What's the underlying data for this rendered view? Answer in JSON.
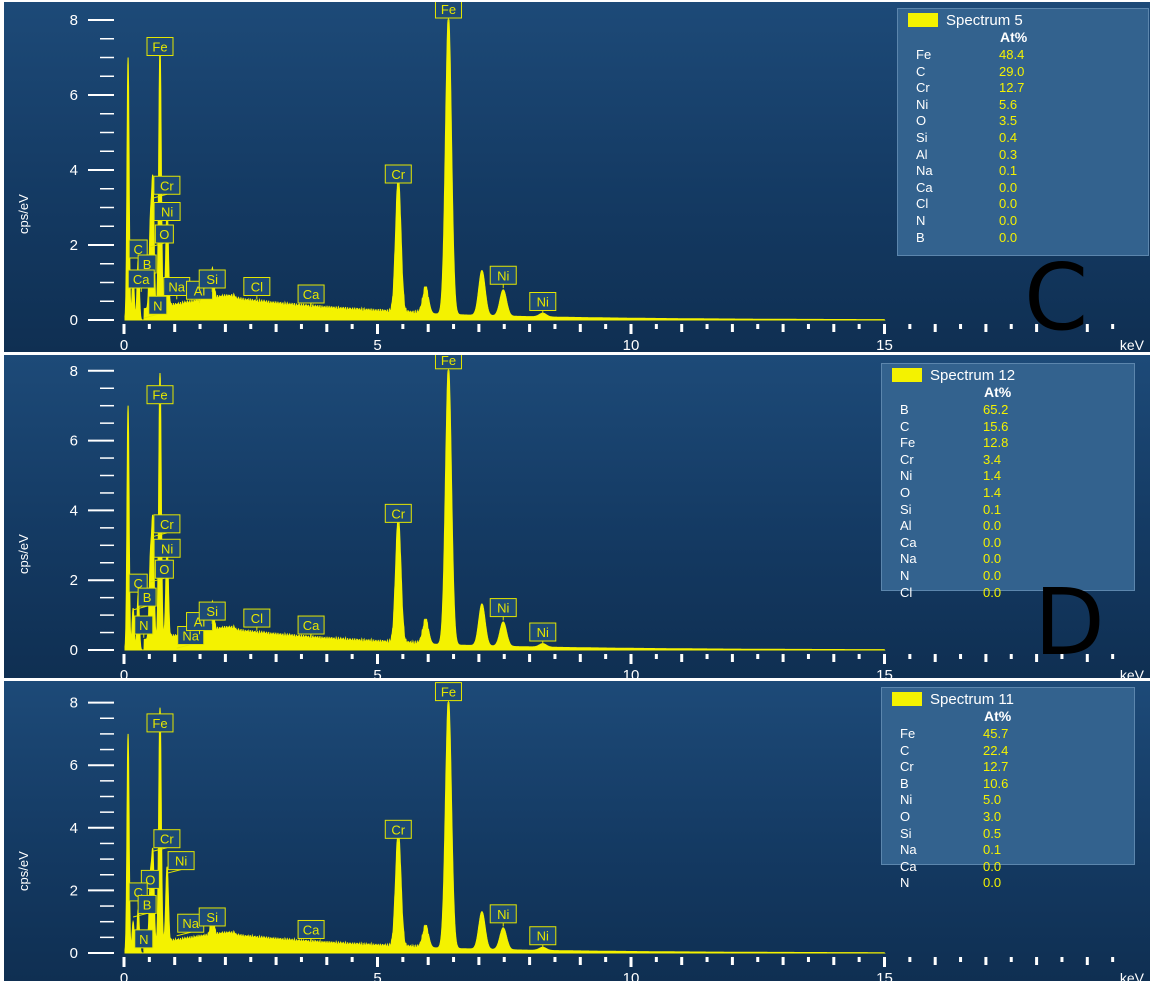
{
  "chart_data": [
    {
      "type": "line",
      "panel_letter": "C",
      "ylabel": "cps/eV",
      "xunit": "keV",
      "xlim": [
        0,
        20
      ],
      "ylim": [
        0,
        8
      ],
      "xticks": [
        0,
        5,
        10,
        15
      ],
      "yticks": [
        0,
        2,
        4,
        6,
        8
      ],
      "legend": {
        "name": "Spectrum 5",
        "column": "At%",
        "rows": [
          {
            "element": "Fe",
            "value": "48.4"
          },
          {
            "element": "C",
            "value": "29.0"
          },
          {
            "element": "Cr",
            "value": "12.7"
          },
          {
            "element": "Ni",
            "value": "5.6"
          },
          {
            "element": "O",
            "value": "3.5"
          },
          {
            "element": "Si",
            "value": "0.4"
          },
          {
            "element": "Al",
            "value": "0.3"
          },
          {
            "element": "Na",
            "value": "0.1"
          },
          {
            "element": "Ca",
            "value": "0.0"
          },
          {
            "element": "Cl",
            "value": "0.0"
          },
          {
            "element": "N",
            "value": "0.0"
          },
          {
            "element": "B",
            "value": "0.0"
          }
        ]
      },
      "peaks": [
        {
          "label": "Fe",
          "x": 0.71,
          "y": 7.0
        },
        {
          "label": "Cr",
          "x": 0.57,
          "y": 3.3
        },
        {
          "label": "Ni",
          "x": 0.85,
          "y": 2.6
        },
        {
          "label": "O",
          "x": 0.52,
          "y": 2.0
        },
        {
          "label": "C",
          "x": 0.28,
          "y": 1.6
        },
        {
          "label": "B",
          "x": 0.18,
          "y": 1.2
        },
        {
          "label": "Ca",
          "x": 0.34,
          "y": 0.8
        },
        {
          "label": "N",
          "x": 0.39,
          "y": 0.1
        },
        {
          "label": "Na",
          "x": 1.04,
          "y": 0.6
        },
        {
          "label": "Al",
          "x": 1.49,
          "y": 0.5
        },
        {
          "label": "Si",
          "x": 1.74,
          "y": 0.8
        },
        {
          "label": "Cl",
          "x": 2.62,
          "y": 0.6
        },
        {
          "label": "Ca",
          "x": 3.69,
          "y": 0.4
        },
        {
          "label": "Cr",
          "x": 5.41,
          "y": 3.6
        },
        {
          "label": "Fe",
          "x": 6.4,
          "y": 8.0
        },
        {
          "label": "Ni",
          "x": 7.48,
          "y": 0.9
        },
        {
          "label": "Ni",
          "x": 8.26,
          "y": 0.2
        }
      ],
      "spectrum_peaks": [
        {
          "x": 0.08,
          "y": 7.0
        },
        {
          "x": 0.18,
          "y": 1.2
        },
        {
          "x": 0.28,
          "y": 1.6
        },
        {
          "x": 0.52,
          "y": 2.2
        },
        {
          "x": 0.57,
          "y": 3.3
        },
        {
          "x": 0.71,
          "y": 7.0
        },
        {
          "x": 0.85,
          "y": 2.6
        },
        {
          "x": 1.74,
          "y": 0.8
        },
        {
          "x": 5.41,
          "y": 3.6
        },
        {
          "x": 5.95,
          "y": 0.7
        },
        {
          "x": 6.4,
          "y": 8.0
        },
        {
          "x": 7.06,
          "y": 1.2
        },
        {
          "x": 7.48,
          "y": 0.7
        },
        {
          "x": 8.26,
          "y": 0.1
        }
      ]
    },
    {
      "type": "line",
      "panel_letter": "D",
      "ylabel": "cps/eV",
      "xunit": "keV",
      "xlim": [
        0,
        20
      ],
      "ylim": [
        0,
        8
      ],
      "xticks": [
        0,
        5,
        10,
        15
      ],
      "yticks": [
        0,
        2,
        4,
        6,
        8
      ],
      "legend": {
        "name": "Spectrum 12",
        "column": "At%",
        "rows": [
          {
            "element": "B",
            "value": "65.2"
          },
          {
            "element": "C",
            "value": "15.6"
          },
          {
            "element": "Fe",
            "value": "12.8"
          },
          {
            "element": "Cr",
            "value": "3.4"
          },
          {
            "element": "Ni",
            "value": "1.4"
          },
          {
            "element": "O",
            "value": "1.4"
          },
          {
            "element": "Si",
            "value": "0.1"
          },
          {
            "element": "Al",
            "value": "0.0"
          },
          {
            "element": "Ca",
            "value": "0.0"
          },
          {
            "element": "Na",
            "value": "0.0"
          },
          {
            "element": "N",
            "value": "0.0"
          },
          {
            "element": "Cl",
            "value": "0.0"
          }
        ]
      },
      "peaks": [
        {
          "label": "Fe",
          "x": 0.71,
          "y": 7.0
        },
        {
          "label": "Cr",
          "x": 0.57,
          "y": 3.3
        },
        {
          "label": "Ni",
          "x": 0.85,
          "y": 2.6
        },
        {
          "label": "O",
          "x": 0.52,
          "y": 2.0
        },
        {
          "label": "C",
          "x": 0.28,
          "y": 1.6
        },
        {
          "label": "B",
          "x": 0.18,
          "y": 1.2
        },
        {
          "label": "N",
          "x": 0.39,
          "y": 0.4
        },
        {
          "label": "Na",
          "x": 1.04,
          "y": 0.1
        },
        {
          "label": "Al",
          "x": 1.49,
          "y": 0.5
        },
        {
          "label": "Si",
          "x": 1.74,
          "y": 0.8
        },
        {
          "label": "Cl",
          "x": 2.62,
          "y": 0.6
        },
        {
          "label": "Ca",
          "x": 3.69,
          "y": 0.4
        },
        {
          "label": "Cr",
          "x": 5.41,
          "y": 3.6
        },
        {
          "label": "Fe",
          "x": 6.4,
          "y": 8.0
        },
        {
          "label": "Ni",
          "x": 7.48,
          "y": 0.9
        },
        {
          "label": "Ni",
          "x": 8.26,
          "y": 0.2
        }
      ],
      "spectrum_peaks": [
        {
          "x": 0.08,
          "y": 7.0
        },
        {
          "x": 0.18,
          "y": 1.2
        },
        {
          "x": 0.28,
          "y": 1.6
        },
        {
          "x": 0.52,
          "y": 2.2
        },
        {
          "x": 0.57,
          "y": 3.3
        },
        {
          "x": 0.71,
          "y": 7.6
        },
        {
          "x": 0.85,
          "y": 2.6
        },
        {
          "x": 1.74,
          "y": 0.8
        },
        {
          "x": 5.41,
          "y": 3.6
        },
        {
          "x": 5.95,
          "y": 0.7
        },
        {
          "x": 6.4,
          "y": 8.0
        },
        {
          "x": 7.06,
          "y": 1.2
        },
        {
          "x": 7.48,
          "y": 0.7
        },
        {
          "x": 8.26,
          "y": 0.1
        }
      ]
    },
    {
      "type": "line",
      "panel_letter": "",
      "ylabel": "cps/eV",
      "xunit": "keV",
      "xlim": [
        0,
        20
      ],
      "ylim": [
        0,
        8
      ],
      "xticks": [
        0,
        5,
        10,
        15
      ],
      "yticks": [
        0,
        2,
        4,
        6,
        8
      ],
      "legend": {
        "name": "Spectrum 11",
        "column": "At%",
        "rows": [
          {
            "element": "Fe",
            "value": "45.7"
          },
          {
            "element": "C",
            "value": "22.4"
          },
          {
            "element": "Cr",
            "value": "12.7"
          },
          {
            "element": "B",
            "value": "10.6"
          },
          {
            "element": "Ni",
            "value": "5.0"
          },
          {
            "element": "O",
            "value": "3.0"
          },
          {
            "element": "Si",
            "value": "0.5"
          },
          {
            "element": "Na",
            "value": "0.1"
          },
          {
            "element": "Ca",
            "value": "0.0"
          },
          {
            "element": "N",
            "value": "0.0"
          }
        ]
      },
      "peaks": [
        {
          "label": "Fe",
          "x": 0.71,
          "y": 7.0
        },
        {
          "label": "Cr",
          "x": 0.57,
          "y": 3.3
        },
        {
          "label": "O",
          "x": 0.52,
          "y": 2.0
        },
        {
          "label": "Ni",
          "x": 0.85,
          "y": 2.6
        },
        {
          "label": "C",
          "x": 0.28,
          "y": 1.6
        },
        {
          "label": "B",
          "x": 0.18,
          "y": 1.2
        },
        {
          "label": "N",
          "x": 0.39,
          "y": 0.1
        },
        {
          "label": "Na",
          "x": 1.04,
          "y": 0.6
        },
        {
          "label": "Si",
          "x": 1.74,
          "y": 0.8
        },
        {
          "label": "Ca",
          "x": 3.69,
          "y": 0.4
        },
        {
          "label": "Cr",
          "x": 5.41,
          "y": 3.6
        },
        {
          "label": "Fe",
          "x": 6.4,
          "y": 8.0
        },
        {
          "label": "Ni",
          "x": 7.48,
          "y": 0.9
        },
        {
          "label": "Ni",
          "x": 8.26,
          "y": 0.2
        }
      ],
      "spectrum_peaks": [
        {
          "x": 0.08,
          "y": 7.0
        },
        {
          "x": 0.18,
          "y": 1.0
        },
        {
          "x": 0.28,
          "y": 1.4
        },
        {
          "x": 0.52,
          "y": 2.0
        },
        {
          "x": 0.57,
          "y": 2.8
        },
        {
          "x": 0.71,
          "y": 7.5
        },
        {
          "x": 0.85,
          "y": 2.4
        },
        {
          "x": 1.74,
          "y": 0.8
        },
        {
          "x": 5.41,
          "y": 3.7
        },
        {
          "x": 5.95,
          "y": 0.7
        },
        {
          "x": 6.4,
          "y": 8.0
        },
        {
          "x": 7.06,
          "y": 1.2
        },
        {
          "x": 7.48,
          "y": 0.7
        },
        {
          "x": 8.26,
          "y": 0.1
        }
      ]
    }
  ],
  "colors": {
    "spectrum": "#f4f200",
    "axis": "#ffffff",
    "label_box": "#e4e600",
    "background": "#1a4470"
  }
}
